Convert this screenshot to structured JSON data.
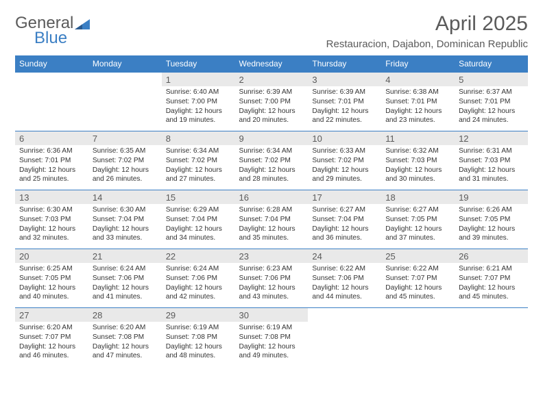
{
  "brand": {
    "word1": "General",
    "word2": "Blue"
  },
  "title": "April 2025",
  "location": "Restauracion, Dajabon, Dominican Republic",
  "colors": {
    "header_bg": "#3b7fc4",
    "header_text": "#ffffff",
    "daynum_bg": "#e9e9e9",
    "text": "#333333",
    "muted": "#5a5a5a",
    "row_divider": "#3b7fc4",
    "background": "#ffffff"
  },
  "typography": {
    "month_title_size_pt": 22,
    "location_size_pt": 11,
    "weekday_size_pt": 9,
    "daynum_size_pt": 10,
    "cell_text_size_pt": 8
  },
  "calendar": {
    "columns": [
      "Sunday",
      "Monday",
      "Tuesday",
      "Wednesday",
      "Thursday",
      "Friday",
      "Saturday"
    ],
    "weeks": [
      [
        null,
        null,
        {
          "n": "1",
          "sr": "6:40 AM",
          "ss": "7:00 PM",
          "dl": "12 hours and 19 minutes."
        },
        {
          "n": "2",
          "sr": "6:39 AM",
          "ss": "7:00 PM",
          "dl": "12 hours and 20 minutes."
        },
        {
          "n": "3",
          "sr": "6:39 AM",
          "ss": "7:01 PM",
          "dl": "12 hours and 22 minutes."
        },
        {
          "n": "4",
          "sr": "6:38 AM",
          "ss": "7:01 PM",
          "dl": "12 hours and 23 minutes."
        },
        {
          "n": "5",
          "sr": "6:37 AM",
          "ss": "7:01 PM",
          "dl": "12 hours and 24 minutes."
        }
      ],
      [
        {
          "n": "6",
          "sr": "6:36 AM",
          "ss": "7:01 PM",
          "dl": "12 hours and 25 minutes."
        },
        {
          "n": "7",
          "sr": "6:35 AM",
          "ss": "7:02 PM",
          "dl": "12 hours and 26 minutes."
        },
        {
          "n": "8",
          "sr": "6:34 AM",
          "ss": "7:02 PM",
          "dl": "12 hours and 27 minutes."
        },
        {
          "n": "9",
          "sr": "6:34 AM",
          "ss": "7:02 PM",
          "dl": "12 hours and 28 minutes."
        },
        {
          "n": "10",
          "sr": "6:33 AM",
          "ss": "7:02 PM",
          "dl": "12 hours and 29 minutes."
        },
        {
          "n": "11",
          "sr": "6:32 AM",
          "ss": "7:03 PM",
          "dl": "12 hours and 30 minutes."
        },
        {
          "n": "12",
          "sr": "6:31 AM",
          "ss": "7:03 PM",
          "dl": "12 hours and 31 minutes."
        }
      ],
      [
        {
          "n": "13",
          "sr": "6:30 AM",
          "ss": "7:03 PM",
          "dl": "12 hours and 32 minutes."
        },
        {
          "n": "14",
          "sr": "6:30 AM",
          "ss": "7:04 PM",
          "dl": "12 hours and 33 minutes."
        },
        {
          "n": "15",
          "sr": "6:29 AM",
          "ss": "7:04 PM",
          "dl": "12 hours and 34 minutes."
        },
        {
          "n": "16",
          "sr": "6:28 AM",
          "ss": "7:04 PM",
          "dl": "12 hours and 35 minutes."
        },
        {
          "n": "17",
          "sr": "6:27 AM",
          "ss": "7:04 PM",
          "dl": "12 hours and 36 minutes."
        },
        {
          "n": "18",
          "sr": "6:27 AM",
          "ss": "7:05 PM",
          "dl": "12 hours and 37 minutes."
        },
        {
          "n": "19",
          "sr": "6:26 AM",
          "ss": "7:05 PM",
          "dl": "12 hours and 39 minutes."
        }
      ],
      [
        {
          "n": "20",
          "sr": "6:25 AM",
          "ss": "7:05 PM",
          "dl": "12 hours and 40 minutes."
        },
        {
          "n": "21",
          "sr": "6:24 AM",
          "ss": "7:06 PM",
          "dl": "12 hours and 41 minutes."
        },
        {
          "n": "22",
          "sr": "6:24 AM",
          "ss": "7:06 PM",
          "dl": "12 hours and 42 minutes."
        },
        {
          "n": "23",
          "sr": "6:23 AM",
          "ss": "7:06 PM",
          "dl": "12 hours and 43 minutes."
        },
        {
          "n": "24",
          "sr": "6:22 AM",
          "ss": "7:06 PM",
          "dl": "12 hours and 44 minutes."
        },
        {
          "n": "25",
          "sr": "6:22 AM",
          "ss": "7:07 PM",
          "dl": "12 hours and 45 minutes."
        },
        {
          "n": "26",
          "sr": "6:21 AM",
          "ss": "7:07 PM",
          "dl": "12 hours and 45 minutes."
        }
      ],
      [
        {
          "n": "27",
          "sr": "6:20 AM",
          "ss": "7:07 PM",
          "dl": "12 hours and 46 minutes."
        },
        {
          "n": "28",
          "sr": "6:20 AM",
          "ss": "7:08 PM",
          "dl": "12 hours and 47 minutes."
        },
        {
          "n": "29",
          "sr": "6:19 AM",
          "ss": "7:08 PM",
          "dl": "12 hours and 48 minutes."
        },
        {
          "n": "30",
          "sr": "6:19 AM",
          "ss": "7:08 PM",
          "dl": "12 hours and 49 minutes."
        },
        null,
        null,
        null
      ]
    ],
    "labels": {
      "sunrise": "Sunrise:",
      "sunset": "Sunset:",
      "daylight": "Daylight:"
    }
  }
}
